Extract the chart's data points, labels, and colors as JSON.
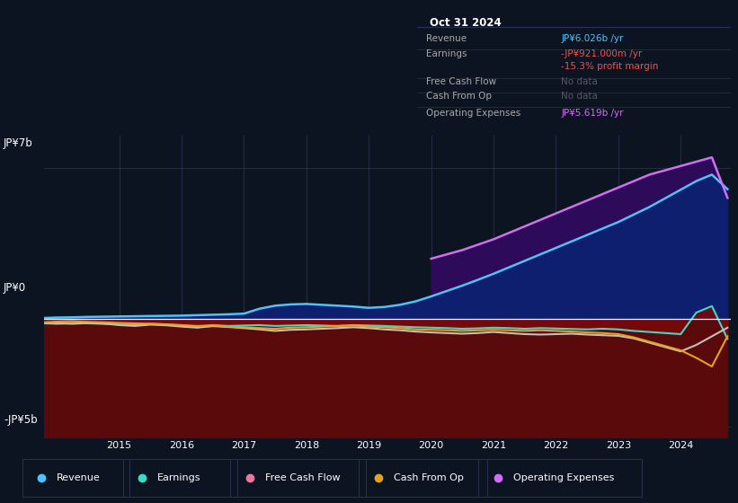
{
  "bg_color": "#0d1421",
  "plot_bg_color": "#0d1421",
  "ylim": [
    -5.5,
    8.5
  ],
  "years": [
    2013.8,
    2014.0,
    2014.25,
    2014.5,
    2014.75,
    2015.0,
    2015.25,
    2015.5,
    2015.75,
    2016.0,
    2016.25,
    2016.5,
    2016.75,
    2017.0,
    2017.25,
    2017.5,
    2017.75,
    2018.0,
    2018.25,
    2018.5,
    2018.75,
    2019.0,
    2019.25,
    2019.5,
    2019.75,
    2020.0,
    2020.25,
    2020.5,
    2020.75,
    2021.0,
    2021.25,
    2021.5,
    2021.75,
    2022.0,
    2022.25,
    2022.5,
    2022.75,
    2023.0,
    2023.25,
    2023.5,
    2023.75,
    2024.0,
    2024.25,
    2024.5,
    2024.75
  ],
  "revenue": [
    0.05,
    0.07,
    0.08,
    0.1,
    0.11,
    0.12,
    0.13,
    0.14,
    0.15,
    0.16,
    0.18,
    0.2,
    0.22,
    0.25,
    0.48,
    0.62,
    0.68,
    0.7,
    0.66,
    0.62,
    0.58,
    0.52,
    0.56,
    0.66,
    0.82,
    1.05,
    1.3,
    1.55,
    1.82,
    2.1,
    2.4,
    2.7,
    3.0,
    3.3,
    3.6,
    3.9,
    4.2,
    4.5,
    4.85,
    5.2,
    5.6,
    6.0,
    6.4,
    6.7,
    6.026
  ],
  "op_expenses": [
    0.0,
    0.0,
    0.0,
    0.0,
    0.0,
    0.0,
    0.0,
    0.0,
    0.0,
    0.0,
    0.0,
    0.0,
    0.0,
    0.0,
    0.0,
    0.0,
    0.0,
    0.0,
    0.0,
    0.0,
    0.0,
    0.0,
    0.0,
    0.0,
    0.0,
    2.8,
    3.0,
    3.2,
    3.45,
    3.7,
    4.0,
    4.3,
    4.6,
    4.9,
    5.2,
    5.5,
    5.8,
    6.1,
    6.4,
    6.7,
    6.9,
    7.1,
    7.3,
    7.5,
    5.619
  ],
  "earnings": [
    -0.2,
    -0.22,
    -0.18,
    -0.2,
    -0.22,
    -0.25,
    -0.28,
    -0.22,
    -0.25,
    -0.3,
    -0.35,
    -0.28,
    -0.32,
    -0.3,
    -0.28,
    -0.32,
    -0.3,
    -0.28,
    -0.3,
    -0.32,
    -0.28,
    -0.3,
    -0.32,
    -0.35,
    -0.38,
    -0.4,
    -0.42,
    -0.45,
    -0.43,
    -0.4,
    -0.42,
    -0.45,
    -0.42,
    -0.44,
    -0.46,
    -0.48,
    -0.45,
    -0.48,
    -0.55,
    -0.6,
    -0.65,
    -0.7,
    0.3,
    0.6,
    -0.921
  ],
  "free_cash_flow": [
    -0.18,
    -0.2,
    -0.22,
    -0.19,
    -0.21,
    -0.28,
    -0.32,
    -0.26,
    -0.29,
    -0.35,
    -0.4,
    -0.33,
    -0.37,
    -0.42,
    -0.48,
    -0.55,
    -0.5,
    -0.48,
    -0.45,
    -0.42,
    -0.38,
    -0.42,
    -0.48,
    -0.52,
    -0.58,
    -0.62,
    -0.65,
    -0.68,
    -0.65,
    -0.6,
    -0.65,
    -0.7,
    -0.72,
    -0.7,
    -0.68,
    -0.72,
    -0.75,
    -0.78,
    -0.9,
    -1.1,
    -1.3,
    -1.5,
    -1.2,
    -0.8,
    -0.4
  ],
  "cash_from_op": [
    -0.15,
    -0.12,
    -0.1,
    -0.13,
    -0.15,
    -0.18,
    -0.2,
    -0.22,
    -0.24,
    -0.28,
    -0.32,
    -0.3,
    -0.35,
    -0.38,
    -0.42,
    -0.45,
    -0.4,
    -0.38,
    -0.35,
    -0.32,
    -0.3,
    -0.35,
    -0.38,
    -0.42,
    -0.48,
    -0.5,
    -0.52,
    -0.55,
    -0.52,
    -0.5,
    -0.52,
    -0.55,
    -0.52,
    -0.55,
    -0.58,
    -0.62,
    -0.65,
    -0.7,
    -0.85,
    -1.05,
    -1.25,
    -1.45,
    -1.8,
    -2.2,
    -0.8
  ],
  "revenue_color": "#4fc3f7",
  "op_expenses_color": "#d070f0",
  "earnings_line_color": "#40d8c8",
  "free_cash_flow_color": "#c0c0c0",
  "cash_from_op_color": "#e8a020",
  "legend_items": [
    {
      "label": "Revenue",
      "color": "#4fc3f7"
    },
    {
      "label": "Earnings",
      "color": "#40d8c8"
    },
    {
      "label": "Free Cash Flow",
      "color": "#e878a0"
    },
    {
      "label": "Cash From Op",
      "color": "#e8a020"
    },
    {
      "label": "Operating Expenses",
      "color": "#d070f0"
    }
  ],
  "info_box": {
    "title": "Oct 31 2024",
    "rows": [
      {
        "label": "Revenue",
        "value": "JP¥6.026b /yr",
        "value_color": "#4fc3f7"
      },
      {
        "label": "Earnings",
        "value": "-JP¥921.000m /yr",
        "value_color": "#ef5350"
      },
      {
        "label": "",
        "value": "-15.3% profit margin",
        "value_color": "#ef5350"
      },
      {
        "label": "Free Cash Flow",
        "value": "No data",
        "value_color": "#555566"
      },
      {
        "label": "Cash From Op",
        "value": "No data",
        "value_color": "#555566"
      },
      {
        "label": "Operating Expenses",
        "value": "JP¥5.619b /yr",
        "value_color": "#d070f0"
      }
    ]
  }
}
